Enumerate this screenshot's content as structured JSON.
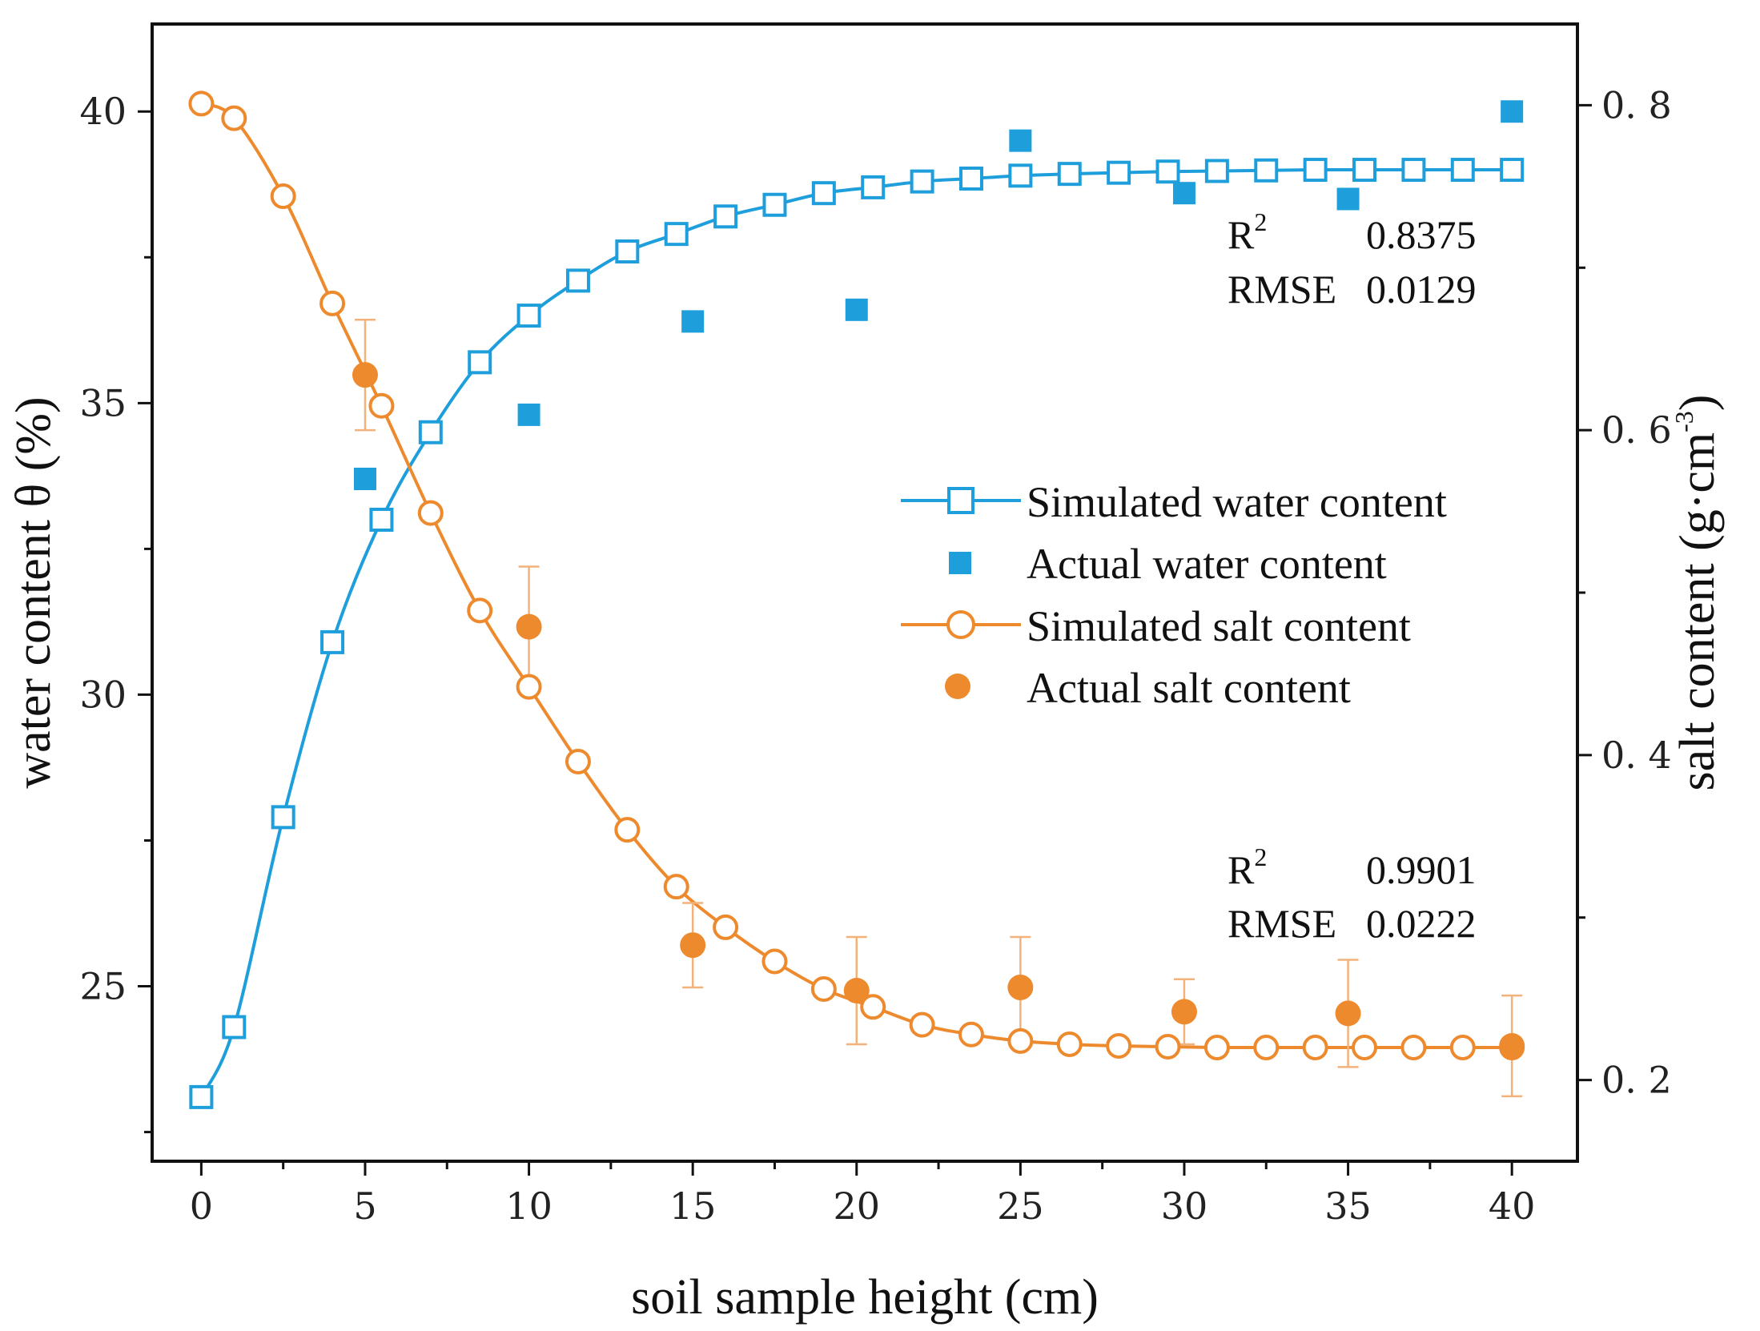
{
  "chart_data": {
    "type": "line",
    "xlabel": "soil sample height (cm)",
    "ylabel_left": "water content θ (%)",
    "ylabel_right_base": "salt content (g·cm",
    "ylabel_right_exp": "-3",
    "ylabel_right_close": ")",
    "xlim": [
      -1.5,
      42
    ],
    "ylim_left": [
      22,
      41.5
    ],
    "ylim_right": [
      0.15,
      0.85
    ],
    "x_ticks": [
      0,
      5,
      10,
      15,
      20,
      25,
      30,
      35,
      40
    ],
    "x_tick_labels": [
      "0",
      "5",
      "10",
      "15",
      "20",
      "25",
      "30",
      "35",
      "40"
    ],
    "y_left_ticks": [
      25,
      30,
      35,
      40
    ],
    "y_left_tick_labels": [
      "25",
      "30",
      "35",
      "40"
    ],
    "y_right_ticks": [
      0.2,
      0.4,
      0.6,
      0.8
    ],
    "y_right_tick_labels": [
      "0. 2",
      "0. 4",
      "0. 6",
      "0. 8"
    ],
    "colors": {
      "water": "#1e9fdc",
      "salt": "#ee8a2e",
      "salt_error": "#f2b27a",
      "axis": "#111111"
    },
    "series": [
      {
        "name": "Simulated water content",
        "axis": "left",
        "style": "line-open-square",
        "x": [
          0,
          1,
          2.5,
          4,
          5.5,
          7,
          8.5,
          10,
          11.5,
          13,
          14.5,
          16,
          17.5,
          19,
          20.5,
          22,
          23.5,
          25,
          26.5,
          28,
          29.5,
          31,
          32.5,
          34,
          35.5,
          37,
          38.5,
          40
        ],
        "y": [
          23.1,
          24.3,
          27.9,
          30.9,
          33.0,
          34.5,
          35.7,
          36.5,
          37.1,
          37.6,
          37.9,
          38.2,
          38.4,
          38.6,
          38.7,
          38.8,
          38.85,
          38.9,
          38.93,
          38.95,
          38.97,
          38.98,
          38.99,
          39.0,
          39.0,
          39.0,
          39.0,
          39.0
        ]
      },
      {
        "name": "Actual water content",
        "axis": "left",
        "style": "filled-square",
        "x": [
          5,
          10,
          15,
          20,
          25,
          30,
          35,
          40
        ],
        "y": [
          33.7,
          34.8,
          36.4,
          36.6,
          39.5,
          38.6,
          38.5,
          40.0
        ]
      },
      {
        "name": "Simulated salt content",
        "axis": "right",
        "style": "line-open-circle",
        "x": [
          0,
          1,
          2.5,
          4,
          5.5,
          7,
          8.5,
          10,
          11.5,
          13,
          14.5,
          16,
          17.5,
          19,
          20.5,
          22,
          23.5,
          25,
          26.5,
          28,
          29.5,
          31,
          32.5,
          34,
          35.5,
          37,
          38.5,
          40
        ],
        "y": [
          0.801,
          0.792,
          0.744,
          0.678,
          0.615,
          0.549,
          0.489,
          0.442,
          0.396,
          0.354,
          0.319,
          0.294,
          0.273,
          0.256,
          0.245,
          0.234,
          0.228,
          0.224,
          0.222,
          0.221,
          0.2205,
          0.22,
          0.22,
          0.22,
          0.22,
          0.22,
          0.22,
          0.22
        ]
      },
      {
        "name": "Actual salt content",
        "axis": "right",
        "style": "filled-circle",
        "x": [
          5,
          10,
          15,
          20,
          25,
          30,
          35,
          40
        ],
        "y": [
          0.634,
          0.479,
          0.283,
          0.255,
          0.257,
          0.242,
          0.241,
          0.221
        ],
        "error": [
          0.034,
          0.037,
          0.026,
          0.033,
          0.031,
          0.02,
          0.033,
          0.031
        ]
      }
    ],
    "legend": {
      "position": "center-right",
      "entries": [
        "Simulated water content",
        "Actual water content",
        "Simulated salt content",
        "Actual salt content"
      ]
    },
    "annotations": [
      {
        "r2_label": "R",
        "r2_exp": "2",
        "r2_value": "0.8375",
        "rmse_label": "RMSE",
        "rmse_value": "0.0129"
      },
      {
        "r2_label": "R",
        "r2_exp": "2",
        "r2_value": "0.9901",
        "rmse_label": "RMSE",
        "rmse_value": "0.0222"
      }
    ]
  }
}
